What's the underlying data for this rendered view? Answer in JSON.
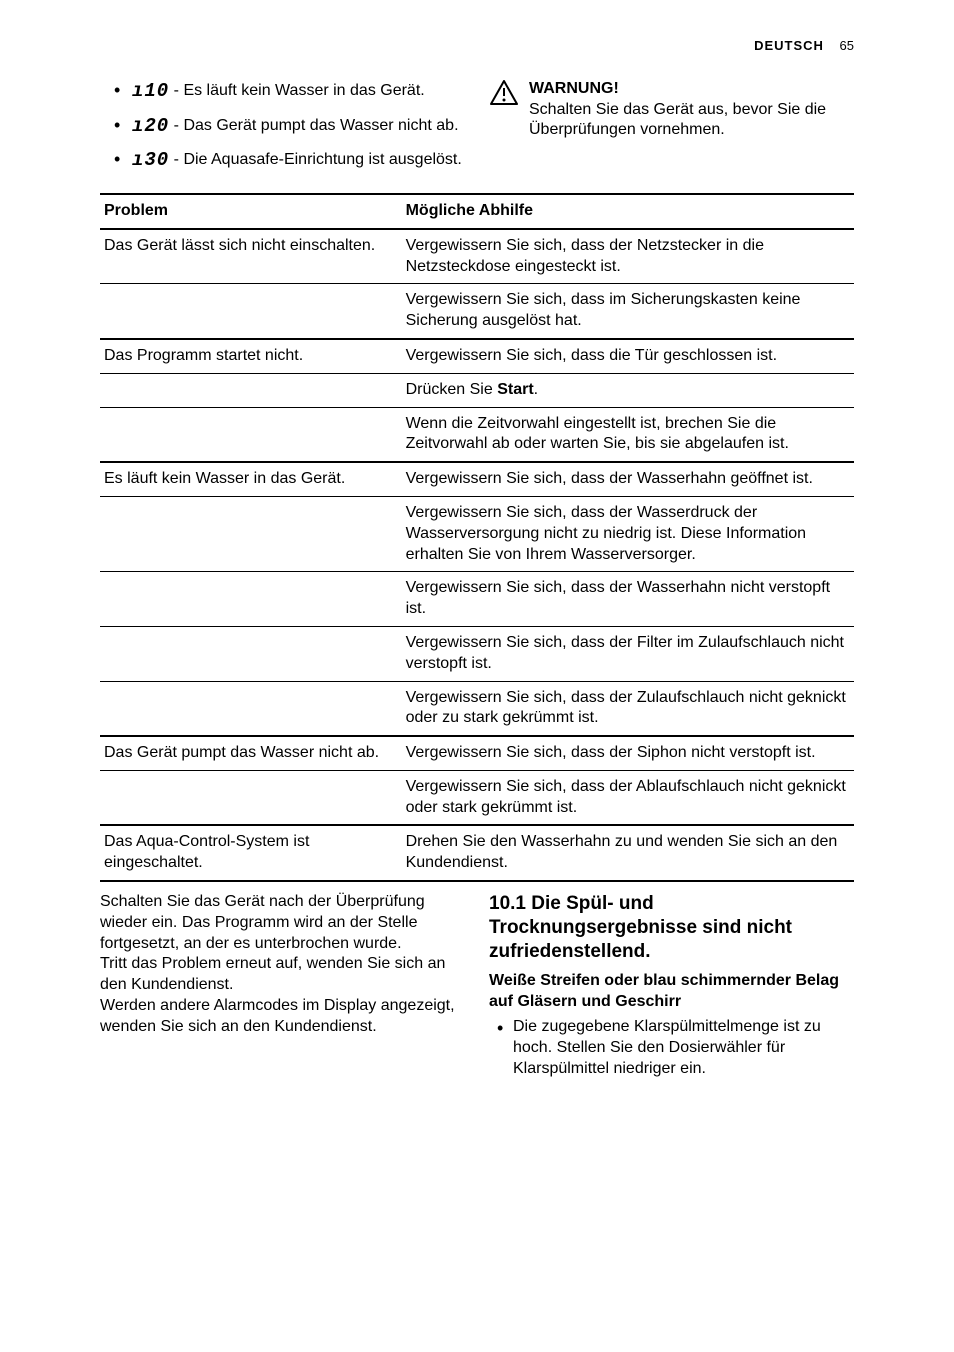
{
  "header": {
    "language": "DEUTSCH",
    "page": "65"
  },
  "errors": [
    {
      "code_glyph": "ı10",
      "text": " - Es läuft kein Wasser in das Gerät."
    },
    {
      "code_glyph": "ı20",
      "text": " - Das Gerät pumpt das Wasser nicht ab."
    },
    {
      "code_glyph": "ı30",
      "text": " - Die Aquasafe-Einrichtung ist ausgelöst."
    }
  ],
  "warning": {
    "title": "WARNUNG!",
    "body": "Schalten Sie das Gerät aus, bevor Sie die Überprüfungen vornehmen."
  },
  "table": {
    "headers": {
      "problem": "Problem",
      "remedy": "Mögliche Abhilfe"
    },
    "rows": [
      {
        "problem": "Das Gerät lässt sich nicht einschalten.",
        "remedy": "Vergewissern Sie sich, dass der Netzstecker in die Netzsteckdose eingesteckt ist.",
        "heavy": false
      },
      {
        "problem": "",
        "remedy": "Vergewissern Sie sich, dass im Sicherungskasten keine Sicherung ausgelöst hat.",
        "heavy": false
      },
      {
        "problem": "Das Programm startet nicht.",
        "remedy": "Vergewissern Sie sich, dass die Tür geschlossen ist.",
        "heavy": true
      },
      {
        "problem": "",
        "remedy_pre": "Drücken Sie ",
        "remedy_bold": "Start",
        "remedy_post": ".",
        "heavy": false
      },
      {
        "problem": "",
        "remedy": "Wenn die Zeitvorwahl eingestellt ist, brechen Sie die Zeitvorwahl ab oder warten Sie, bis sie abgelaufen ist.",
        "heavy": false
      },
      {
        "problem": "Es läuft kein Wasser in das Gerät.",
        "remedy": "Vergewissern Sie sich, dass der Wasserhahn geöffnet ist.",
        "heavy": true
      },
      {
        "problem": "",
        "remedy": "Vergewissern Sie sich, dass der Wasserdruck der Wasserversorgung nicht zu niedrig ist. Diese Information erhalten Sie von Ihrem Wasserversorger.",
        "heavy": false
      },
      {
        "problem": "",
        "remedy": "Vergewissern Sie sich, dass der Wasserhahn nicht verstopft ist.",
        "heavy": false
      },
      {
        "problem": "",
        "remedy": "Vergewissern Sie sich, dass der Filter im Zulaufschlauch nicht verstopft ist.",
        "heavy": false
      },
      {
        "problem": "",
        "remedy": "Vergewissern Sie sich, dass der Zulaufschlauch nicht geknickt oder zu stark gekrümmt ist.",
        "heavy": false
      },
      {
        "problem": "Das Gerät pumpt das Wasser nicht ab.",
        "remedy": "Vergewissern Sie sich, dass der Siphon nicht verstopft ist.",
        "heavy": true
      },
      {
        "problem": "",
        "remedy": "Vergewissern Sie sich, dass der Ablaufschlauch nicht geknickt oder stark gekrümmt ist.",
        "heavy": false
      },
      {
        "problem": "Das Aqua-Control-System ist eingeschaltet.",
        "remedy": "Drehen Sie den Wasserhahn zu und wenden Sie sich an den Kundendienst.",
        "heavy": true
      }
    ]
  },
  "after_table": "Schalten Sie das Gerät nach der Überprüfung wieder ein. Das Programm wird an der Stelle fortgesetzt, an der es unterbrochen wurde.\nTritt das Problem erneut auf, wenden Sie sich an den Kundendienst.\nWerden andere Alarmcodes im Display angezeigt, wenden Sie sich an den Kundendienst.",
  "section": {
    "number": "10.1",
    "title": " Die Spül- und Trocknungsergebnisse sind nicht zufriedenstellend.",
    "sub": "Weiße Streifen oder blau schimmernder Belag auf Gläsern und Geschirr",
    "bullet": "Die zugegebene Klarspülmittelmenge ist zu hoch. Stellen Sie den Dosierwähler für Klarspülmittel niedriger ein."
  }
}
